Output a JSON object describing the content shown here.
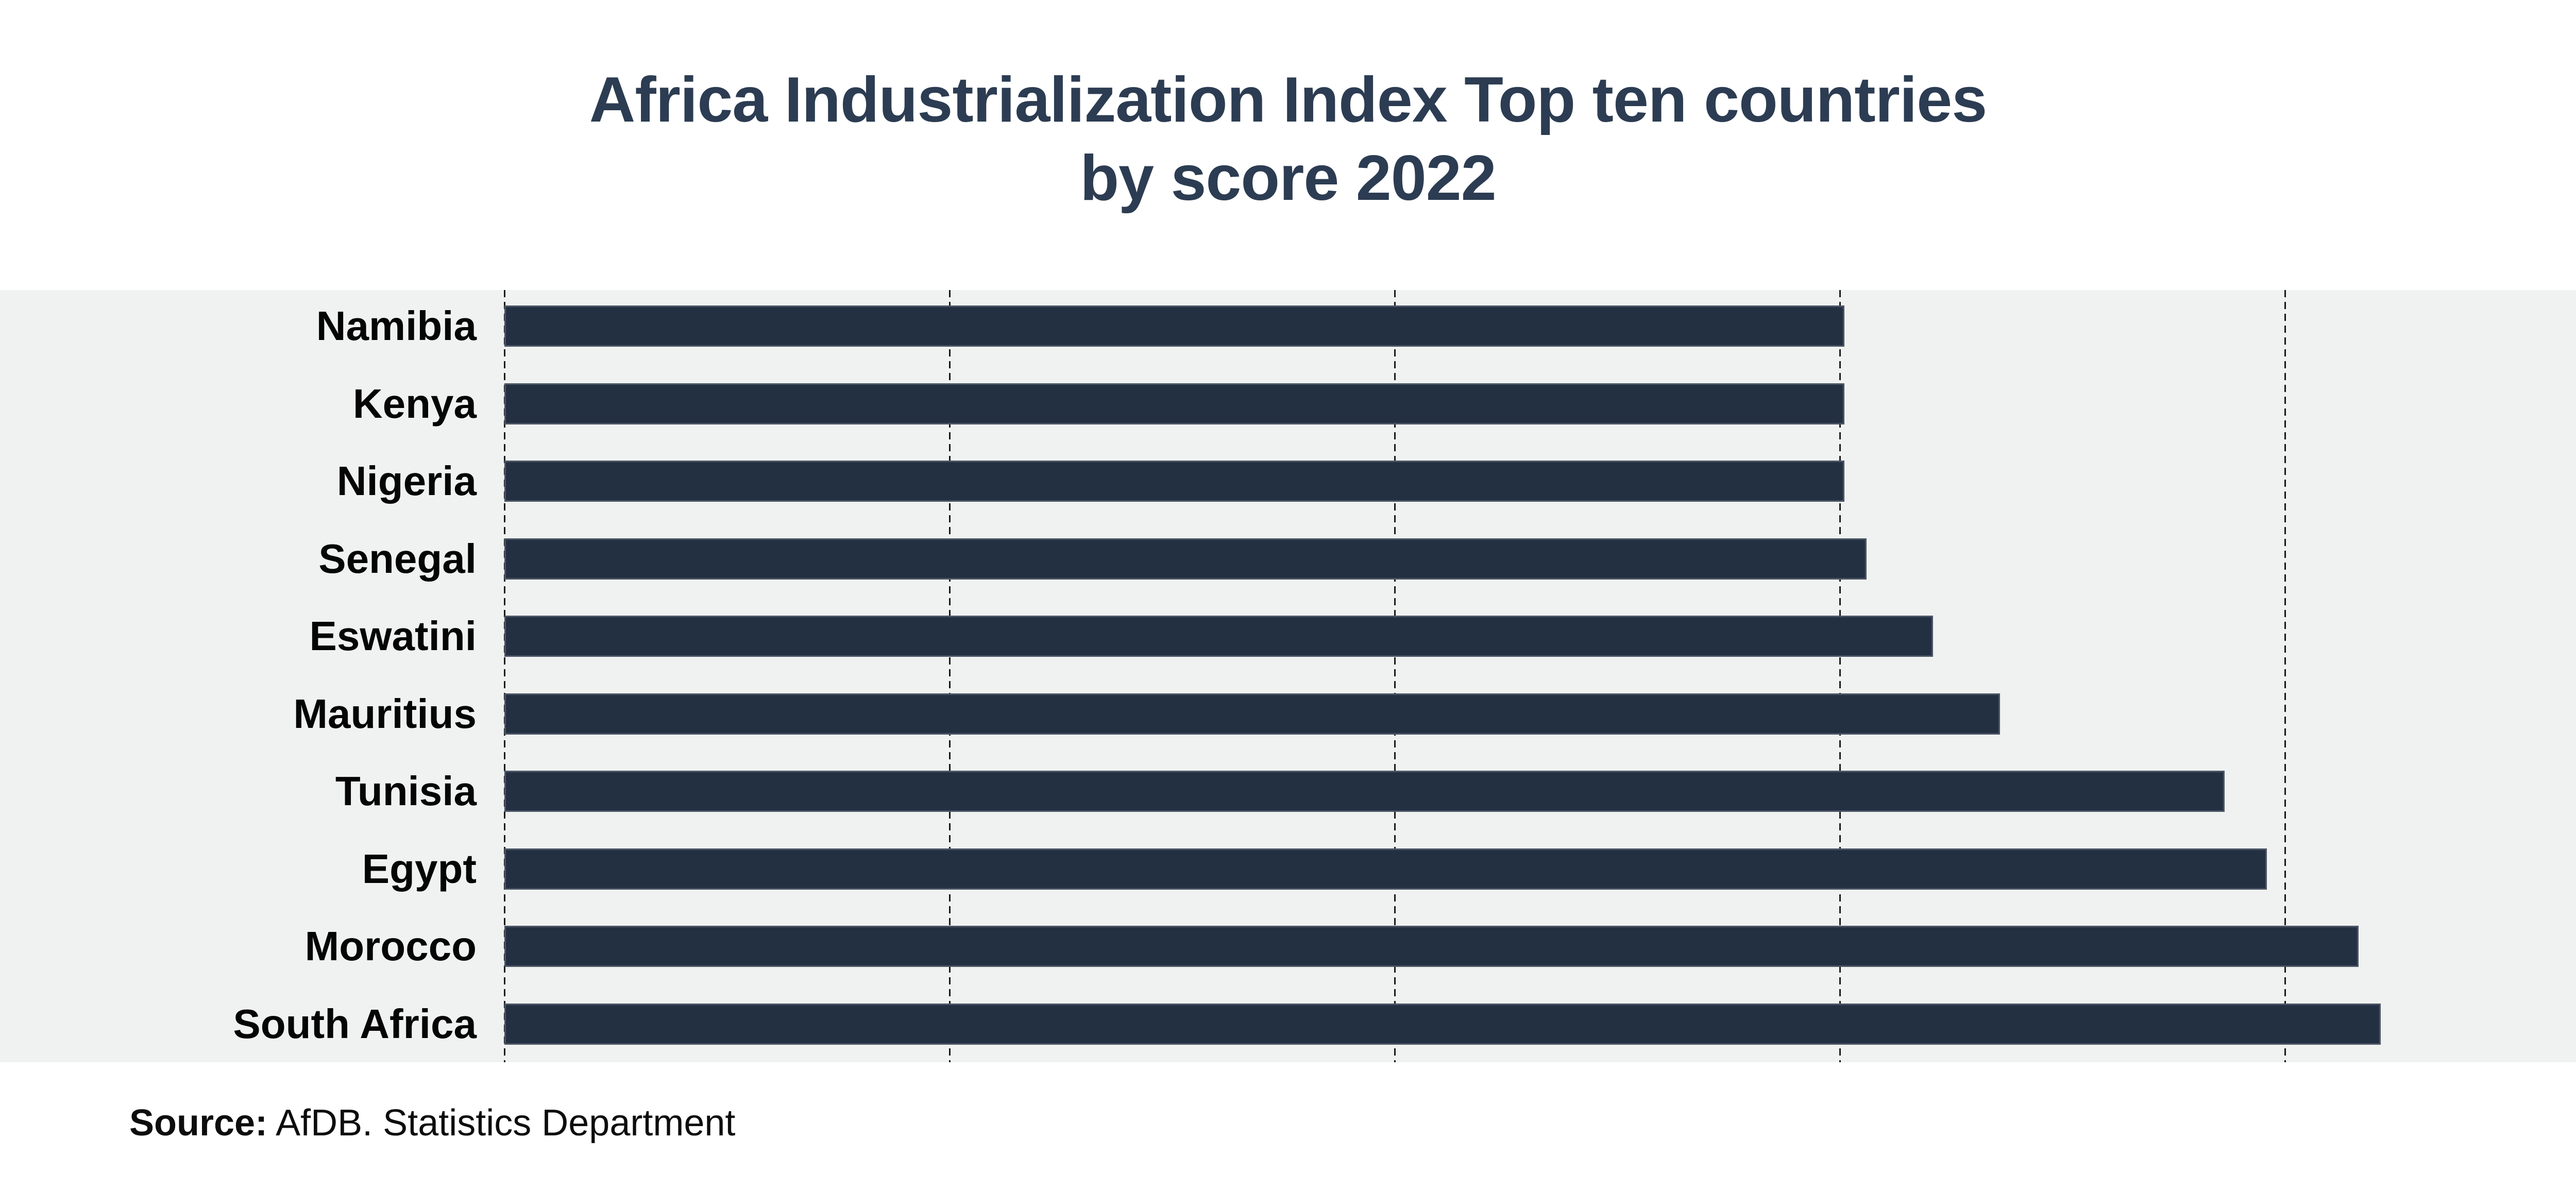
{
  "title": {
    "line1": "Africa Industrialization Index Top ten countries",
    "line2": "by score 2022"
  },
  "source": {
    "label": "Source:",
    "text": " AfDB. Statistics Department"
  },
  "colors": {
    "bar": "#233042",
    "plot_background": "#f0f2f1",
    "title": "#2c3c52",
    "gridline": "#191919",
    "page_background": "#ffffff"
  },
  "chart_data": {
    "type": "bar",
    "orientation": "horizontal",
    "title": "Africa Industrialization Index Top ten countries by score 2022",
    "categories": [
      "Namibia",
      "Kenya",
      "Nigeria",
      "Senegal",
      "Eswatini",
      "Mauritius",
      "Tunisia",
      "Egypt",
      "Morocco",
      "South Africa"
    ],
    "values": [
      0.602,
      0.602,
      0.602,
      0.612,
      0.642,
      0.672,
      0.773,
      0.792,
      0.833,
      0.843
    ],
    "xlabel": "",
    "ylabel": "",
    "xlim": [
      0,
      0.93
    ],
    "gridline_values": [
      0,
      0.2,
      0.4,
      0.6,
      0.8
    ],
    "grid": "dashed-vertical",
    "value_labels_shown": false,
    "legend": "none",
    "sort_order": "ascending-top-to-bottom"
  }
}
